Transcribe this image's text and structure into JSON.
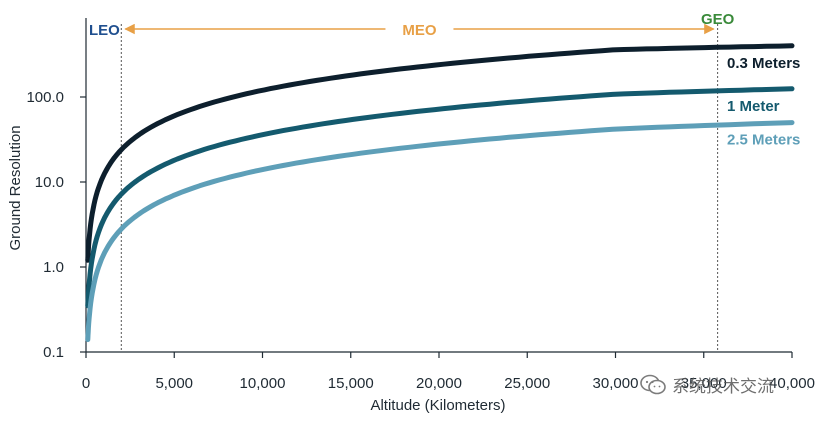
{
  "chart_data": {
    "type": "line",
    "title": "",
    "xlabel": "Altitude (Kilometers)",
    "ylabel": "Ground Resolution",
    "xlim": [
      0,
      40000
    ],
    "ylim": [
      0.1,
      1000
    ],
    "yscale": "log",
    "x_ticks": [
      0,
      5000,
      10000,
      15000,
      20000,
      25000,
      30000,
      35000,
      40000
    ],
    "x_tick_labels": [
      "0",
      "5,000",
      "10,000",
      "15,000",
      "20,000",
      "25,000",
      "30,000",
      "35,000",
      "40,000"
    ],
    "y_ticks": [
      0.1,
      1,
      10,
      100
    ],
    "y_tick_labels": [
      "0.1",
      "1.0",
      "10.0",
      "100.0"
    ],
    "x_max_drawn": 40000,
    "series": [
      {
        "name": "0.3 Meters",
        "color": "#0d1f2d",
        "x": [
          100,
          500,
          1000,
          2000,
          5000,
          10000,
          20000,
          30000,
          40000
        ],
        "values": [
          1.2,
          6.0,
          12.0,
          24.0,
          60.0,
          120.0,
          240.0,
          360.0,
          400.0
        ]
      },
      {
        "name": "1 Meter",
        "color": "#145a6e",
        "x": [
          100,
          500,
          1000,
          2000,
          5000,
          10000,
          20000,
          30000,
          40000
        ],
        "values": [
          0.35,
          1.8,
          3.6,
          7.2,
          18.0,
          36.0,
          72.0,
          108.0,
          125.0
        ]
      },
      {
        "name": "2.5 Meters",
        "color": "#5e9fb8",
        "x": [
          100,
          500,
          1000,
          2000,
          5000,
          10000,
          20000,
          30000,
          40000
        ],
        "values": [
          0.14,
          0.7,
          1.4,
          2.8,
          7.0,
          14.0,
          28.0,
          42.0,
          50.0
        ]
      }
    ],
    "regions": {
      "leo": {
        "label": "LEO",
        "boundary_km": 2000,
        "color": "#1f4f8f"
      },
      "meo": {
        "label": "MEO",
        "color": "#e8a046"
      },
      "geo": {
        "label": "GEO",
        "boundary_km": 35786,
        "color": "#3a8a3a"
      }
    }
  },
  "watermark": {
    "text": "系统技术交流",
    "icon": "wechat-icon"
  }
}
